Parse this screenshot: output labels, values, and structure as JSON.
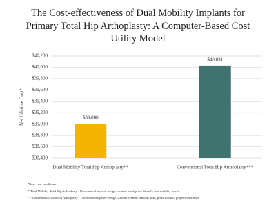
{
  "chart_data": {
    "type": "bar",
    "title": "The Cost-effectiveness of Dual Mobility Implants for Primary Total Hip Arthoplasty: A Computer-Based Cost Utility Model",
    "y_label": "Net Lifetime Cost*",
    "categories": [
      "Dual Mobility Total Hip Arthoplasty**",
      "Conventional Total Hip Arthoplasty***"
    ],
    "values": [
      39008,
      40031
    ],
    "value_labels": [
      "$39,008",
      "$40,031"
    ],
    "colors": [
      "#f5b400",
      "#3e736f"
    ],
    "ylim": [
      38400,
      40200
    ],
    "yticks": [
      {
        "value": 38400,
        "label": "$38,400"
      },
      {
        "value": 38600,
        "label": "$38,600"
      },
      {
        "value": 38800,
        "label": "$38,800"
      },
      {
        "value": 39000,
        "label": "$39,000"
      },
      {
        "value": 39200,
        "label": "$39,200"
      },
      {
        "value": 39400,
        "label": "$39,400"
      },
      {
        "value": 39600,
        "label": "$39,600"
      },
      {
        "value": 39800,
        "label": "$39,800"
      },
      {
        "value": 40000,
        "label": "$40,000"
      },
      {
        "value": 40200,
        "label": "$40,200"
      }
    ],
    "grid": true,
    "footnotes": [
      "*Base-case conditions",
      "**Dual Mobility Total Hip Arthoplasty - Uncemented tapered-wedge, ceramic head, press-fit shell, dual mobility insert",
      "***Conventional Total Hip Arthoplasty - Uncemented tapered-wedge, ≥32mm ceramic femoral head, press-fit shell, polyethylene liner"
    ]
  }
}
